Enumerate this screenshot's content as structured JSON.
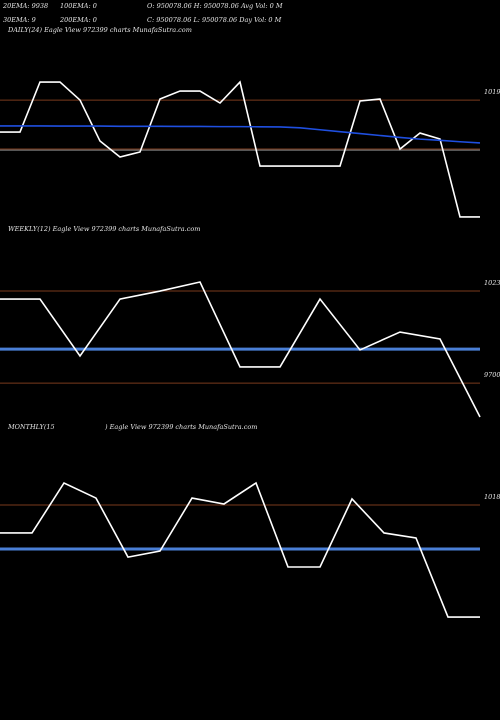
{
  "header": {
    "ema20": "20EMA: 9938",
    "ema100": "100EMA: 0",
    "ohlc1": "O: 950078.06 H: 950078.06 Avg Vol: 0 M",
    "ema30": "30EMA: 9",
    "ema200": "200EMA: 0",
    "ohlc2": "C: 950078.06 L: 950078.06 Day Vol: 0 M"
  },
  "chart_data": [
    {
      "type": "line",
      "title": "DAILY(24) Eagle View 972399 charts MunafaSutra.com",
      "ylim": [
        9384,
        10536
      ],
      "yticks": [
        10190
      ],
      "hlines": [
        10190,
        9908,
        9902
      ],
      "hline_colors": [
        "#7a3a1c",
        "#7a3a1c",
        "#8a8a8a"
      ],
      "series": [
        {
          "color": "#ffffff",
          "values": [
            10006,
            10006,
            10294,
            10294,
            10190,
            9954,
            9862,
            9891,
            10196,
            10242,
            10242,
            10173,
            10294,
            9810,
            9810,
            9810,
            9810,
            9810,
            10185,
            10196,
            9908,
            10000,
            9966,
            9517,
            9517
          ]
        },
        {
          "color": "#1f4fe0",
          "values": [
            10041,
            10041,
            10041,
            10040,
            10040,
            10040,
            10039,
            10039,
            10039,
            10038,
            10038,
            10037,
            10037,
            10036,
            10035,
            10030,
            10019,
            10008,
            9997,
            9986,
            9975,
            9965,
            9958,
            9950,
            9943
          ]
        }
      ]
    },
    {
      "type": "line",
      "title": "WEEKLY(12) Eagle View 972399 charts MunafaSutra.com",
      "ylim": [
        9430,
        10524
      ],
      "yticks": [
        10230,
        9700
      ],
      "hlines": [
        10230,
        9700
      ],
      "hline_colors": [
        "#7a3a1c",
        "#7a3a1c"
      ],
      "series": [
        {
          "color": "#4a7fd6",
          "values": [
            9896,
            9896,
            9896,
            9896,
            9896,
            9896,
            9896,
            9896,
            9896,
            9896,
            9896,
            9896,
            9896
          ]
        },
        {
          "color": "#ffffff",
          "values": [
            10184,
            10184,
            9856,
            10184,
            10230,
            10282,
            9793,
            9793,
            10184,
            9891,
            9994,
            9954,
            9505
          ]
        }
      ]
    },
    {
      "type": "line",
      "title": [
        "MONTHLY(15",
        ") Eagle View 972399 charts MunafaSutra.com"
      ],
      "ylim": [
        8942,
        10612
      ],
      "yticks": [
        10180
      ],
      "hlines": [
        10180
      ],
      "hline_colors": [
        "#7a3a1c"
      ],
      "series": [
        {
          "color": "#4a7fd6",
          "values": [
            9927,
            9927,
            9927,
            9927,
            9927,
            9927,
            9927,
            9927,
            9927,
            9927,
            9927,
            9927,
            9927,
            9927,
            9927,
            9927
          ]
        },
        {
          "color": "#ffffff",
          "values": [
            10019,
            10019,
            10307,
            10220,
            9880,
            9915,
            10220,
            10186,
            10307,
            9823,
            9823,
            10215,
            10019,
            9990,
            9535,
            9535
          ]
        }
      ]
    }
  ]
}
